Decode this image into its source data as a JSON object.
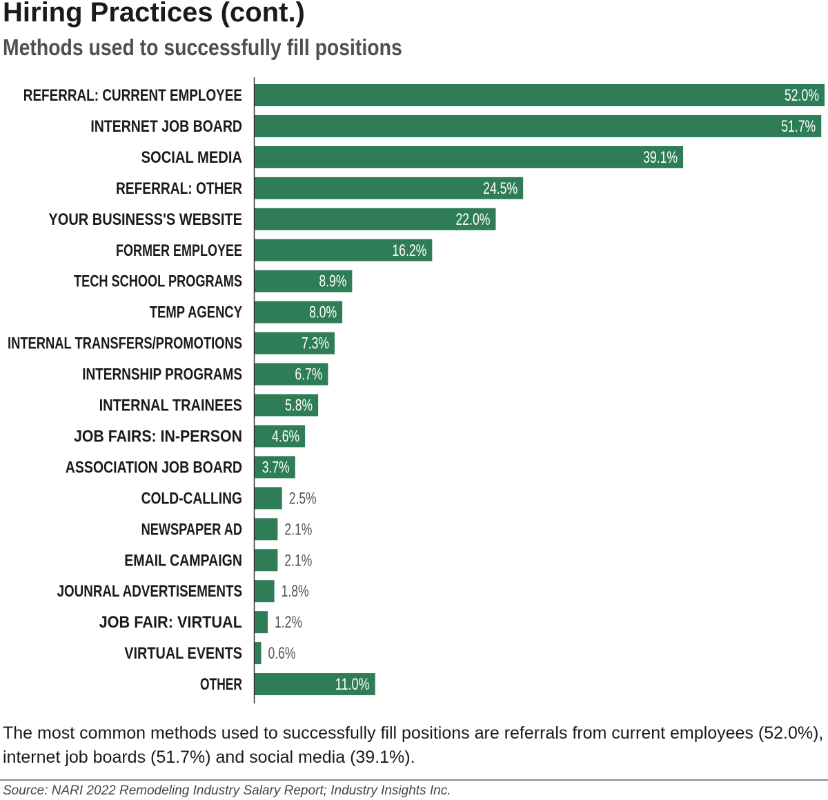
{
  "title": "Hiring Practices (cont.)",
  "subtitle": "Methods used to successfully fill positions",
  "summary": "The most common methods used to successfully fill positions are referrals from current employees (52.0%), internet job boards (51.7%) and social media (39.1%).",
  "source": "Source: NARI 2022 Remodeling Industry Salary Report; Industry Insights Inc.",
  "colors": {
    "bar": "#2e7d57",
    "label_inside": "#ffffff",
    "label_outside": "#555555",
    "axis": "#333333"
  },
  "chart_data": {
    "type": "bar",
    "orientation": "horizontal",
    "title": "Hiring Practices (cont.)",
    "subtitle": "Methods used to successfully fill positions",
    "xlabel": "",
    "ylabel": "",
    "grid": false,
    "legend": "none",
    "xlim": [
      0,
      52
    ],
    "categories": [
      "REFERRAL: CURRENT EMPLOYEE",
      "INTERNET JOB BOARD",
      "SOCIAL MEDIA",
      "REFERRAL: OTHER",
      "YOUR BUSINESS'S WEBSITE",
      "FORMER EMPLOYEE",
      "TECH SCHOOL PROGRAMS",
      "TEMP AGENCY",
      "INTERNAL TRANSFERS/PROMOTIONS",
      "INTERNSHIP PROGRAMS",
      "INTERNAL TRAINEES",
      "JOB FAIRS: IN-PERSON",
      "ASSOCIATION JOB BOARD",
      "COLD-CALLING",
      "NEWSPAPER AD",
      "EMAIL CAMPAIGN",
      "JOUNRAL ADVERTISEMENTS",
      "JOB FAIR: VIRTUAL",
      "VIRTUAL EVENTS",
      "OTHER"
    ],
    "values": [
      52.0,
      51.7,
      39.1,
      24.5,
      22.0,
      16.2,
      8.9,
      8.0,
      7.3,
      6.7,
      5.8,
      4.6,
      3.7,
      2.5,
      2.1,
      2.1,
      1.8,
      1.2,
      0.6,
      11.0
    ],
    "value_labels": [
      "52.0%",
      "51.7%",
      "39.1%",
      "24.5%",
      "22.0%",
      "16.2%",
      "8.9%",
      "8.0%",
      "7.3%",
      "6.7%",
      "5.8%",
      "4.6%",
      "3.7%",
      "2.5%",
      "2.1%",
      "2.1%",
      "1.8%",
      "1.2%",
      "0.6%",
      "11.0%"
    ]
  }
}
